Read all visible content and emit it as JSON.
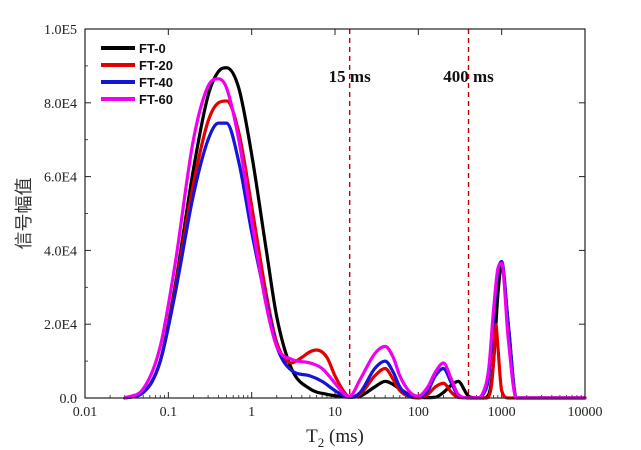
{
  "chart_data": {
    "type": "line",
    "title": "",
    "xlabel": "T",
    "xlabel_sub": "2",
    "xlabel_unit": " (ms)",
    "ylabel": "信号幅值",
    "xscale": "log",
    "xlim": [
      0.01,
      10000
    ],
    "ylim": [
      0,
      100000
    ],
    "xticks": [
      0.01,
      0.1,
      1,
      10,
      100,
      1000,
      10000
    ],
    "xtick_labels": [
      "0.01",
      "0.1",
      "1",
      "10",
      "100",
      "1000",
      "10000"
    ],
    "yticks": [
      0,
      20000,
      40000,
      60000,
      80000,
      100000
    ],
    "ytick_labels": [
      "0.0",
      "2.0E4",
      "4.0E4",
      "6.0E4",
      "8.0E4",
      "1.0E5"
    ],
    "legend_position": "top-left",
    "series": [
      {
        "name": "FT-0",
        "color": "#000000",
        "x": [
          0.03,
          0.05,
          0.08,
          0.12,
          0.2,
          0.3,
          0.4,
          0.5,
          0.7,
          1.0,
          1.5,
          2.0,
          3.0,
          5.0,
          8.0,
          12,
          15,
          20,
          30,
          40,
          60,
          80,
          100,
          130,
          160,
          200,
          250,
          300,
          400,
          500,
          600,
          700,
          800,
          900,
          1000,
          1200,
          1500,
          2000,
          10000
        ],
        "y": [
          0,
          1500,
          10000,
          30000,
          62000,
          82000,
          88500,
          89500,
          84000,
          66000,
          40000,
          22000,
          8000,
          2500,
          1000,
          400,
          200,
          500,
          3000,
          4500,
          2500,
          700,
          200,
          100,
          200,
          1500,
          3500,
          4500,
          500,
          0,
          0,
          1000,
          10000,
          28000,
          36000,
          20000,
          0,
          0,
          0
        ]
      },
      {
        "name": "FT-20",
        "color": "#e00000",
        "x": [
          0.03,
          0.05,
          0.08,
          0.12,
          0.2,
          0.3,
          0.4,
          0.5,
          0.7,
          1.0,
          1.5,
          2.0,
          3.0,
          4.0,
          5.0,
          6.0,
          8.0,
          10,
          13,
          15,
          20,
          30,
          40,
          50,
          60,
          80,
          100,
          130,
          160,
          200,
          250,
          300,
          500,
          650,
          750,
          800,
          850,
          900,
          1000,
          1200,
          10000
        ],
        "y": [
          0,
          1500,
          10000,
          29000,
          58000,
          75000,
          80000,
          80500,
          72000,
          52000,
          28000,
          15000,
          9500,
          11000,
          12500,
          13000,
          11000,
          6000,
          1500,
          300,
          1000,
          6000,
          8000,
          5000,
          2000,
          300,
          0,
          1000,
          3000,
          4000,
          1500,
          200,
          0,
          0,
          3000,
          10000,
          20000,
          14000,
          2000,
          0,
          0
        ]
      },
      {
        "name": "FT-40",
        "color": "#1515d8",
        "x": [
          0.03,
          0.05,
          0.08,
          0.12,
          0.2,
          0.3,
          0.4,
          0.5,
          0.7,
          1.0,
          1.5,
          2.0,
          3.0,
          5.0,
          7.0,
          10,
          13,
          15,
          20,
          30,
          40,
          50,
          60,
          80,
          100,
          130,
          160,
          200,
          250,
          300,
          400,
          500,
          600,
          700,
          800,
          900,
          1000,
          1200,
          1500,
          10000
        ],
        "y": [
          0,
          1500,
          10000,
          28000,
          55000,
          70000,
          74500,
          74500,
          64000,
          45000,
          26000,
          14000,
          7500,
          6000,
          4500,
          2000,
          500,
          200,
          1500,
          8000,
          10000,
          7000,
          3000,
          500,
          300,
          2000,
          6000,
          8000,
          4000,
          700,
          0,
          0,
          1000,
          6000,
          22000,
          34000,
          37000,
          20000,
          0,
          0
        ]
      },
      {
        "name": "FT-60",
        "color": "#f000f0",
        "x": [
          0.03,
          0.05,
          0.08,
          0.12,
          0.2,
          0.3,
          0.4,
          0.5,
          0.7,
          1.0,
          1.5,
          2.0,
          3.0,
          5.0,
          7.0,
          10,
          13,
          15,
          20,
          30,
          40,
          50,
          60,
          80,
          100,
          130,
          160,
          200,
          250,
          300,
          400,
          500,
          600,
          700,
          800,
          900,
          1000,
          1200,
          1500,
          10000
        ],
        "y": [
          0,
          2500,
          14000,
          36000,
          70000,
          84500,
          86500,
          84000,
          70000,
          48000,
          25000,
          14000,
          10500,
          9500,
          8000,
          4000,
          1000,
          500,
          5000,
          12000,
          14000,
          11000,
          6000,
          1500,
          500,
          3000,
          7000,
          9500,
          5000,
          1000,
          0,
          0,
          1500,
          8000,
          24000,
          35000,
          36500,
          16000,
          0,
          0
        ]
      }
    ],
    "annotations": [
      {
        "x": 15,
        "label": "15 ms",
        "color": "#c00000",
        "style": "dashed"
      },
      {
        "x": 400,
        "label": "400 ms",
        "color": "#c00000",
        "style": "dashed"
      }
    ]
  }
}
